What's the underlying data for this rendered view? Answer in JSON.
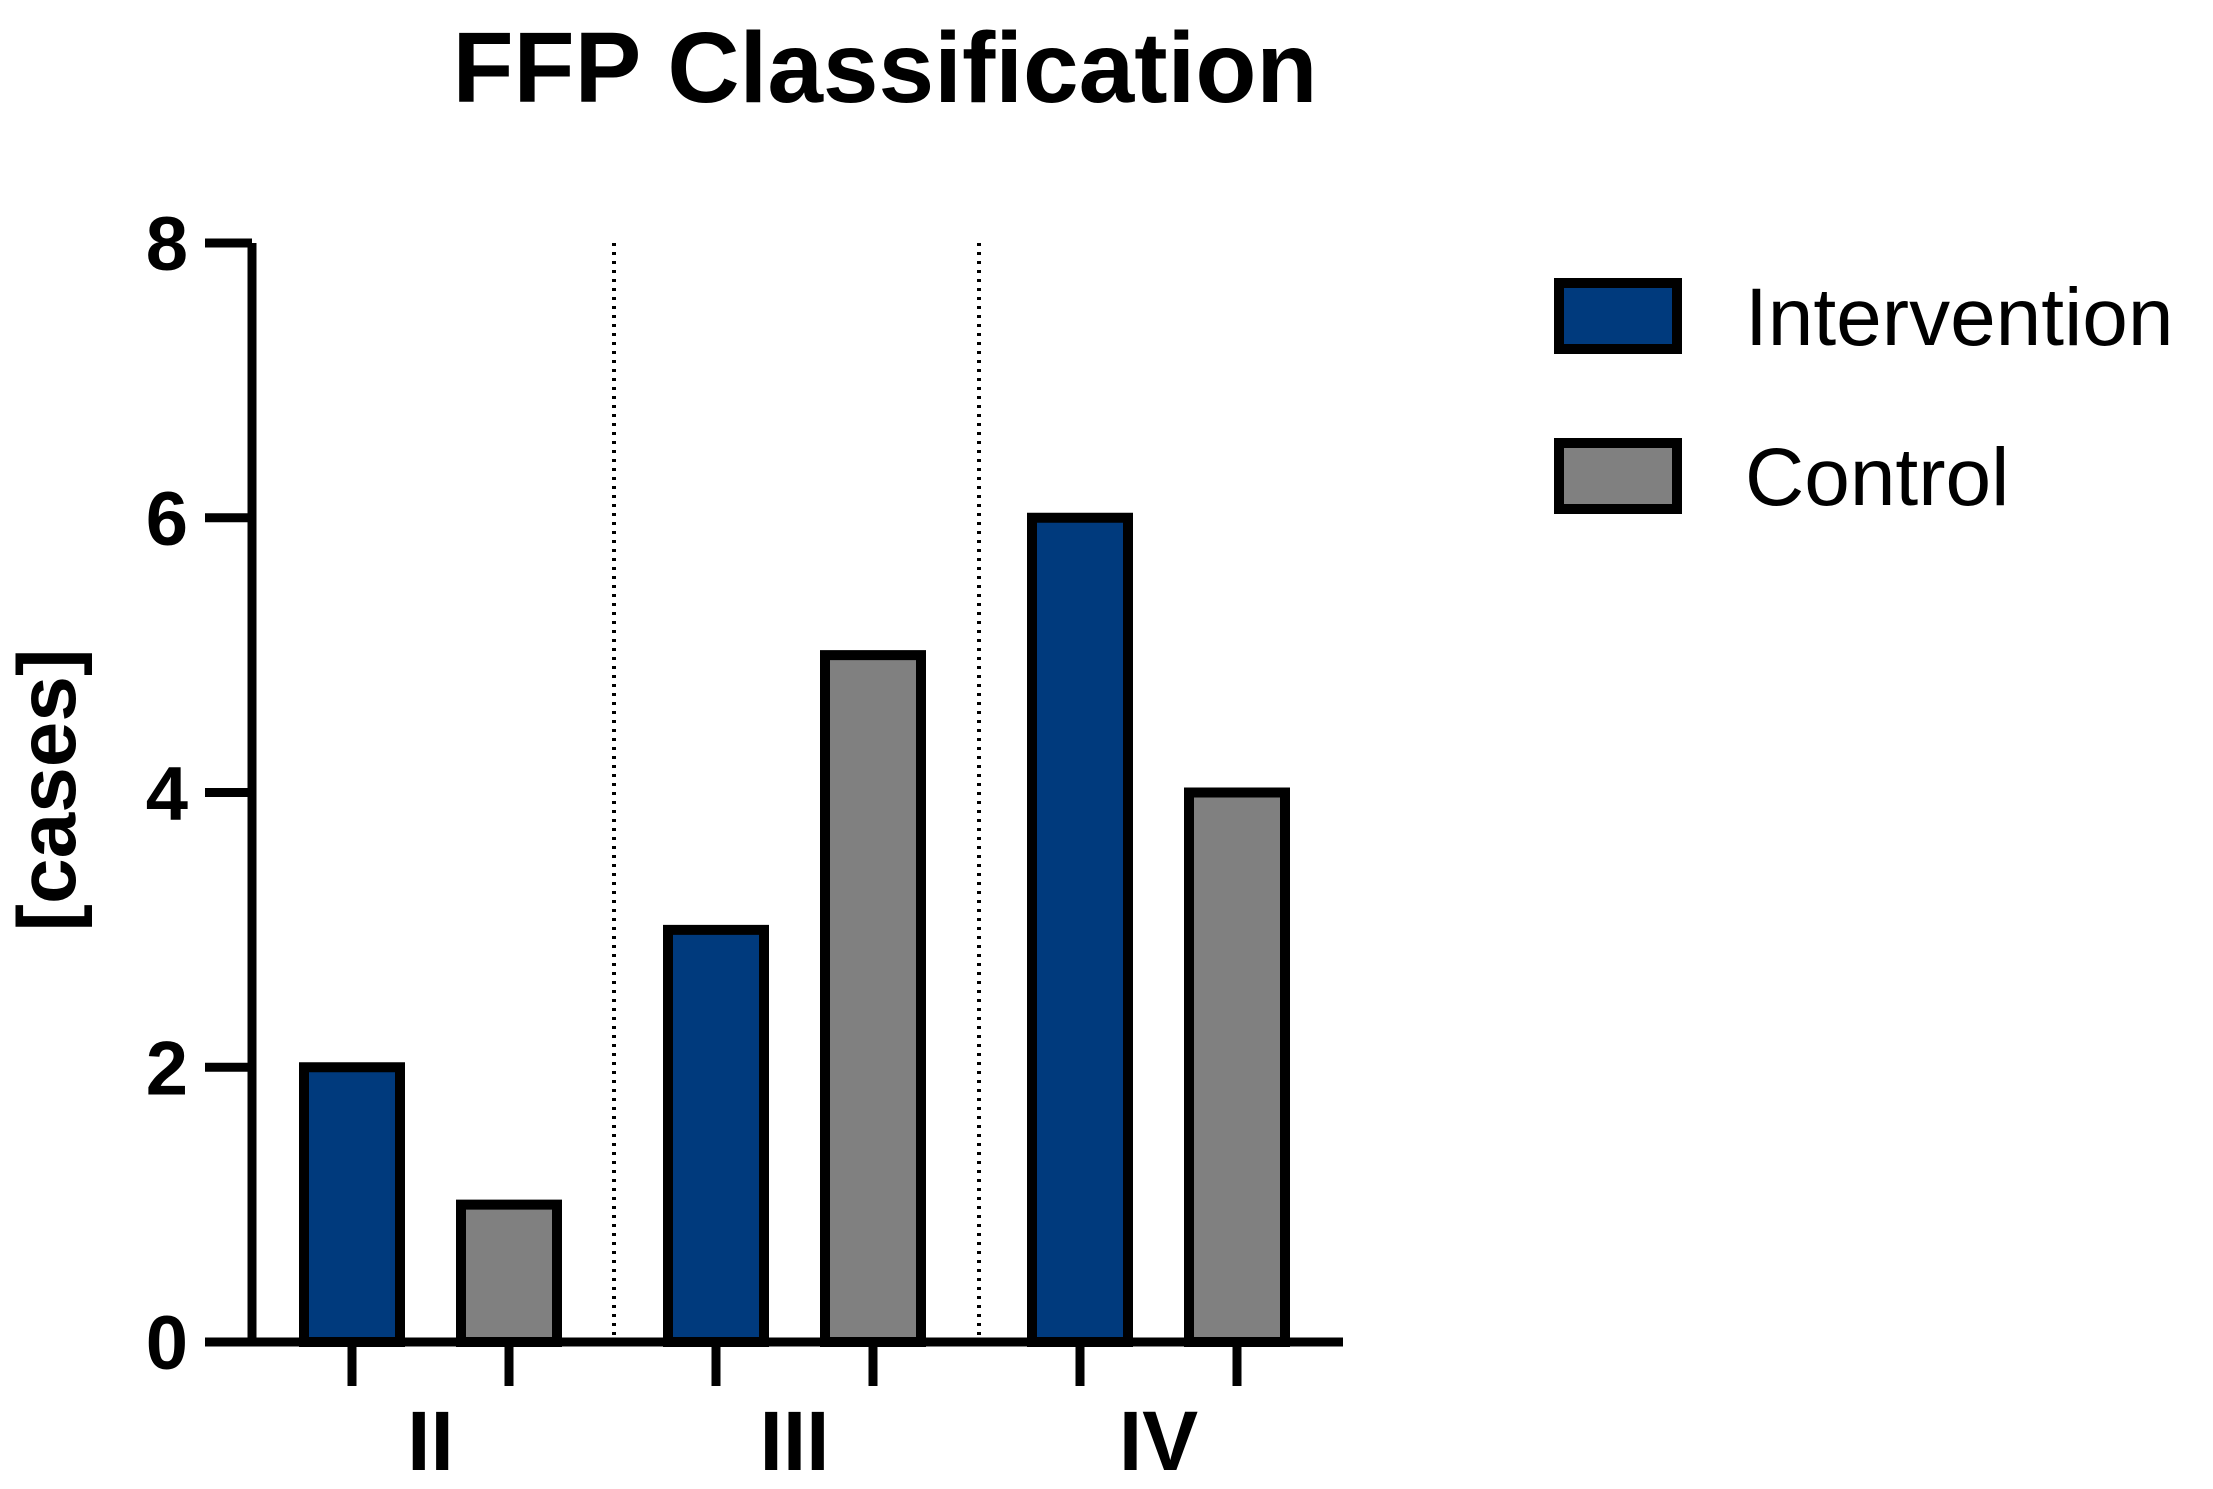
{
  "chart_data": {
    "type": "bar",
    "title": "FFP Classification",
    "xlabel": "",
    "ylabel": "[cases]",
    "categories": [
      "II",
      "III",
      "IV"
    ],
    "series": [
      {
        "name": "Intervention",
        "values": [
          2,
          3,
          6
        ],
        "color": "#003a7d"
      },
      {
        "name": "Control",
        "values": [
          1,
          5,
          4
        ],
        "color": "#808080"
      }
    ],
    "ylim": [
      0,
      8
    ],
    "yticks": [
      0,
      2,
      4,
      6,
      8
    ],
    "grid": false,
    "category_separators": "dotted",
    "legend_position": "right"
  }
}
